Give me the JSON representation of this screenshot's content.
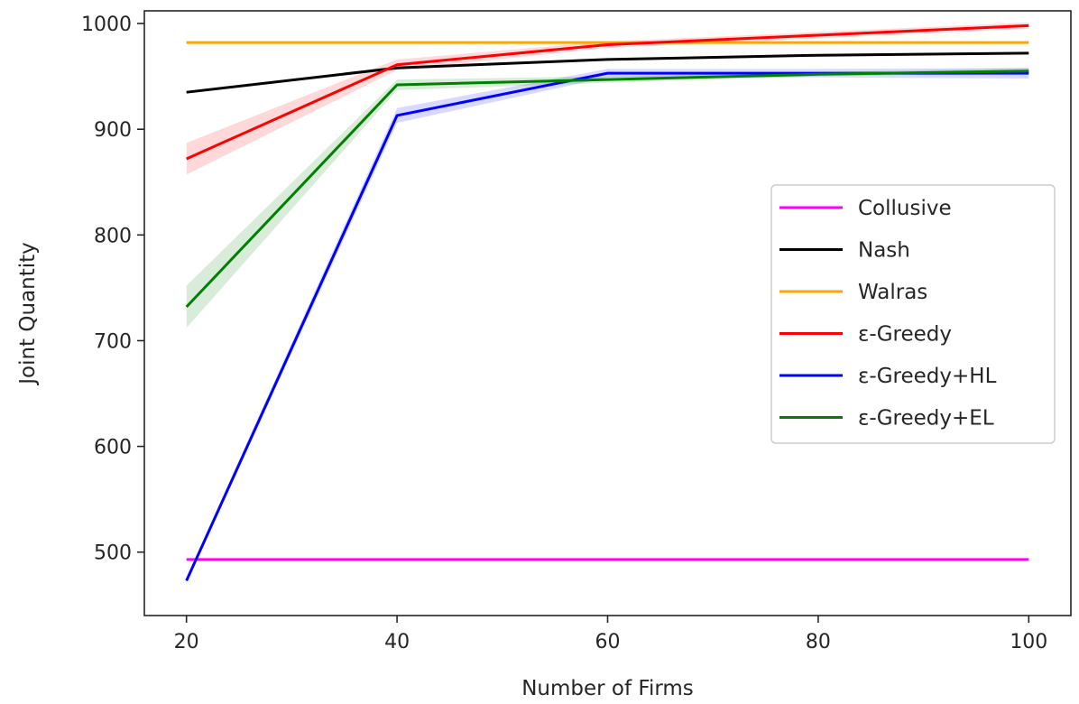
{
  "chart_data": {
    "type": "line",
    "title": "",
    "xlabel": "Number of Firms",
    "ylabel": "Joint Quantity",
    "x": [
      20,
      40,
      60,
      80,
      100
    ],
    "xlim": [
      16,
      104
    ],
    "ylim": [
      440,
      1012
    ],
    "xticks": [
      20,
      40,
      60,
      80,
      100
    ],
    "yticks": [
      500,
      600,
      700,
      800,
      900,
      1000
    ],
    "grid": false,
    "legend_position": "center-right",
    "series": [
      {
        "name": "Collusive",
        "color": "#ff00ff",
        "values": [
          493,
          493,
          493,
          493,
          493
        ]
      },
      {
        "name": "Nash",
        "color": "#000000",
        "values": [
          935,
          958,
          966,
          970,
          972
        ]
      },
      {
        "name": "Walras",
        "color": "#ffa500",
        "values": [
          982,
          982,
          982,
          982,
          982
        ]
      },
      {
        "name": "ε-Greedy",
        "color": "#ff0000",
        "values": [
          872,
          961,
          980,
          989,
          998
        ],
        "band_lower": [
          857,
          956,
          977,
          986,
          995
        ],
        "band_upper": [
          887,
          966,
          983,
          992,
          1001
        ]
      },
      {
        "name": "ε-Greedy+HL",
        "color": "#0000ff",
        "values": [
          473,
          913,
          953,
          953,
          953
        ],
        "band_lower": [
          471,
          906,
          949,
          949,
          948
        ],
        "band_upper": [
          476,
          920,
          957,
          957,
          958
        ]
      },
      {
        "name": "ε-Greedy+EL",
        "color": "#008000",
        "values": [
          732,
          942,
          947,
          952,
          955
        ],
        "band_lower": [
          712,
          937,
          944,
          950,
          953
        ],
        "band_upper": [
          752,
          947,
          950,
          954,
          958
        ]
      }
    ]
  }
}
